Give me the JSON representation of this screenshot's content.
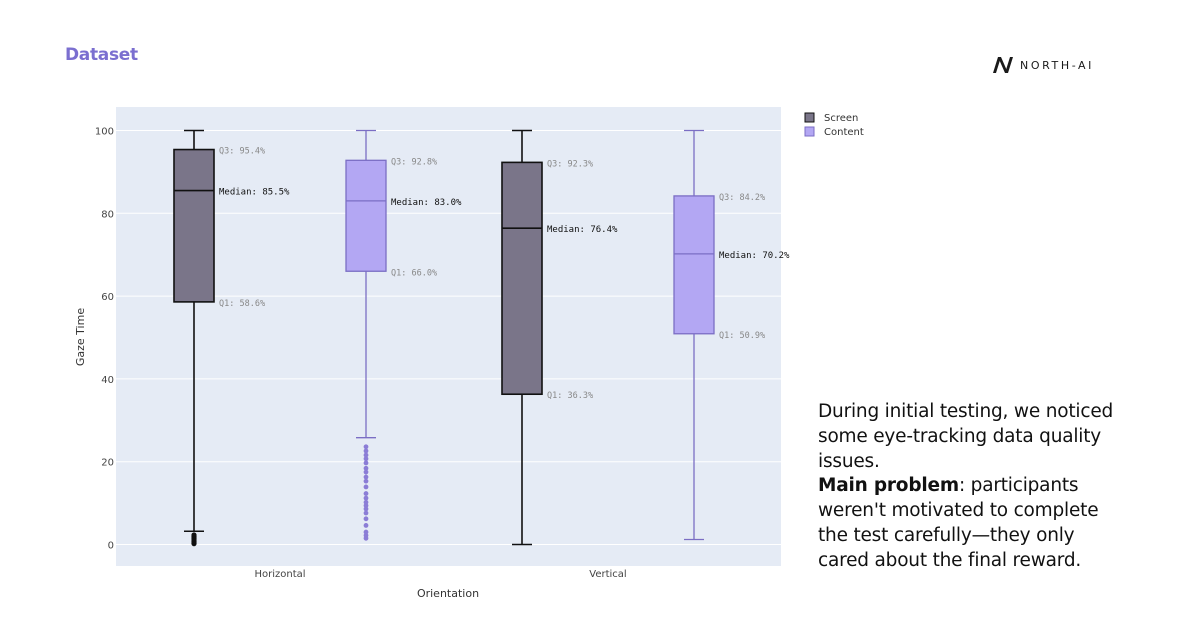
{
  "header": {
    "title": "Dataset",
    "brand": "NORTH-AI"
  },
  "caption": {
    "line1": "During initial testing, we noticed some eye-tracking data quality issues.",
    "bold": "Main problem",
    "rest": ": participants weren't motivated to complete the test carefully—they only cared about the final reward."
  },
  "chart_data": {
    "type": "box",
    "xlabel": "Orientation",
    "ylabel": "Gaze Time",
    "ylim": [
      -5,
      105
    ],
    "yticks": [
      0,
      20,
      40,
      60,
      80,
      100
    ],
    "categories": [
      "Horizontal",
      "Vertical"
    ],
    "legend_position": "top-right",
    "colors": {
      "screen_fill": "#7a7589",
      "screen_line": "#111111",
      "content_fill": "#b3a7f3",
      "content_line": "#7b6ec4",
      "plot_bg": "#e5ebf5",
      "grid": "#ffffff",
      "annotation": "#888888"
    },
    "series": [
      {
        "name": "Screen",
        "boxes": [
          {
            "category": "Horizontal",
            "min": 3.2,
            "q1": 58.6,
            "median": 85.5,
            "q3": 95.4,
            "max": 100,
            "q1_label": "Q1: 58.6%",
            "median_label": "Median: 85.5%",
            "q3_label": "Q3: 95.4%",
            "outliers": [
              0.2,
              0.5,
              0.8,
              1.1,
              1.4,
              1.7,
              2.0,
              2.3
            ]
          },
          {
            "category": "Vertical",
            "min": 0,
            "q1": 36.3,
            "median": 76.4,
            "q3": 92.3,
            "max": 100,
            "q1_label": "Q1: 36.3%",
            "median_label": "Median: 76.4%",
            "q3_label": "Q3: 92.3%",
            "outliers": []
          }
        ]
      },
      {
        "name": "Content",
        "boxes": [
          {
            "category": "Horizontal",
            "min": 25.8,
            "q1": 66.0,
            "median": 83.0,
            "q3": 92.8,
            "max": 100,
            "q1_label": "Q1: 66.0%",
            "median_label": "Median: 83.0%",
            "q3_label": "Q3: 92.8%",
            "outliers": [
              1.5,
              2.2,
              3.0,
              4.6,
              6.2,
              7.6,
              8.6,
              9.4,
              10.2,
              11.2,
              12.3,
              13.9,
              15.3,
              16.3,
              17.5,
              18.4,
              19.7,
              20.7,
              21.6,
              22.6,
              23.6
            ]
          },
          {
            "category": "Vertical",
            "min": 1.2,
            "q1": 50.9,
            "median": 70.2,
            "q3": 84.2,
            "max": 100,
            "q1_label": "Q1: 50.9%",
            "median_label": "Median: 70.2%",
            "q3_label": "Q3: 84.2%",
            "outliers": []
          }
        ]
      }
    ]
  }
}
